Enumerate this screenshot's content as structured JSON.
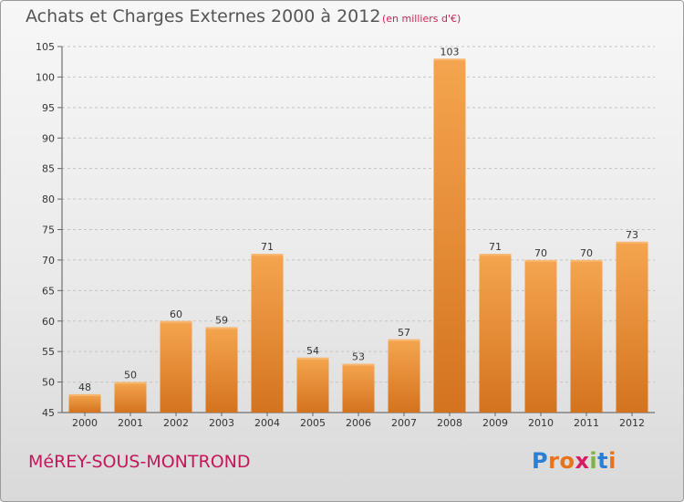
{
  "header": {
    "title": "Achats et Charges Externes 2000 à 2012",
    "subtitle": "(en milliers d'€)"
  },
  "footer": {
    "commune": "MéREY-SOUS-MONTROND",
    "logo_letters": [
      "P",
      "r",
      "o",
      "x",
      "i",
      "t",
      "i"
    ]
  },
  "colors": {
    "bar_top": "#f5a54f",
    "bar_bottom": "#d4731e",
    "commune_text": "#c2185b",
    "title_text": "#555555"
  },
  "chart_data": {
    "type": "bar",
    "title": "Achats et Charges Externes 2000 à 2012",
    "subtitle": "(en milliers d'€)",
    "categories": [
      "2000",
      "2001",
      "2002",
      "2003",
      "2004",
      "2005",
      "2006",
      "2007",
      "2008",
      "2009",
      "2010",
      "2011",
      "2012"
    ],
    "values": [
      48,
      50,
      60,
      59,
      71,
      54,
      53,
      57,
      103,
      71,
      70,
      70,
      73
    ],
    "ylim": [
      45,
      105
    ],
    "yticks": [
      45,
      50,
      55,
      60,
      65,
      70,
      75,
      80,
      85,
      90,
      95,
      100,
      105
    ],
    "grid": true,
    "data_labels": true
  }
}
